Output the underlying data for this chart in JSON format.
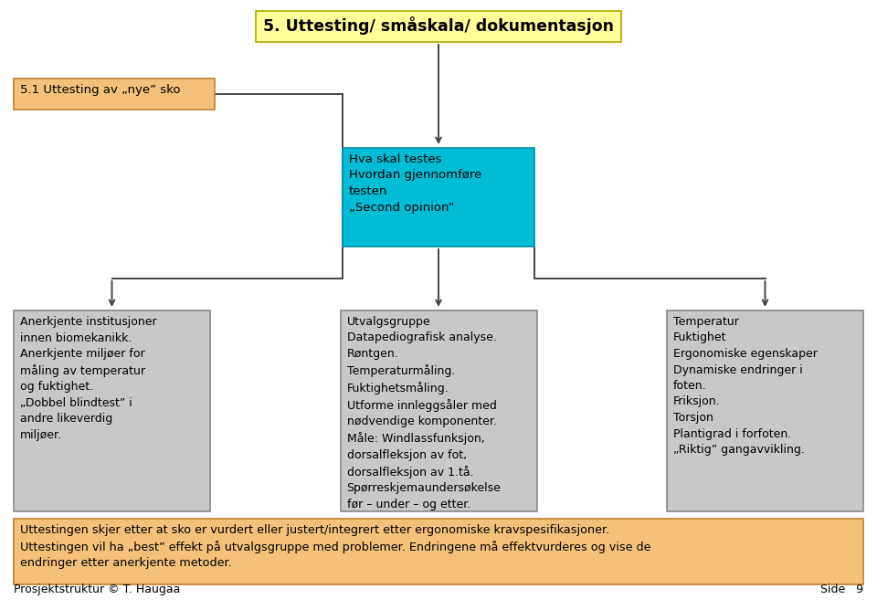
{
  "title": "5. Uttesting/ småskala/ dokumentasjon",
  "title_bg": "#ffff99",
  "title_border": "#aaa800",
  "box_51_text": "5.1 Uttesting av „nye” sko",
  "box_51_bg": "#f5c07a",
  "box_51_border": "#c08030",
  "box_center_text": "Hva skal testes\nHvordan gjennomføre\ntesten\n„Second opinion”",
  "box_center_bg": "#00bcd4",
  "box_center_border": "#0090aa",
  "box_left_text": "Anerkjente institusjoner\ninnen biomekanikk.\nAnerkjente miljøer for\nmåling av temperatur\nog fuktighet.\n„Dobbel blindtest” i\nandre likeverdig\nmiljøer.",
  "box_left_bg": "#c8c8c8",
  "box_left_border": "#888888",
  "box_mid_text": "Utvalgsgruppe\nDatapediografisk analyse.\nRøntgen.\nTemperaturmåling.\nFuktighetsmåling.\nUtforme innleggsåler med\nnødvendige komponenter.\nMåle: Windlassfunksjon,\ndorsalfleksjon av fot,\ndorsalfleksjon av 1.tå.\nSpørreskjemaundersøkelse\nfør – under – og etter.",
  "box_mid_bg": "#c8c8c8",
  "box_mid_border": "#888888",
  "box_right_text": "Temperatur\nFuktighet\nErgonomiske egenskaper\nDynamiske endringer i\nfoten.\nFriksjon.\nTorsjon\nPlantigrad i forfoten.\n„Riktig” gangavvikling.",
  "box_right_bg": "#c8c8c8",
  "box_right_border": "#888888",
  "box_bottom_text": "Uttestingen skjer etter at sko er vurdert eller justert/integrert etter ergonomiske kravspesifikasjoner.\nUttestingen vil ha „best” effekt på utvalgsgruppe med problemer. Endringene må effektvurderes og vise de\nendringer etter anerkjente metoder.",
  "box_bottom_bg": "#f5c07a",
  "box_bottom_border": "#c08030",
  "footer_left": "Prosjektstruktur © T. Haugaa",
  "footer_right": "Side   9",
  "bg_color": "#ffffff",
  "text_color": "#000000",
  "line_color": "#444444",
  "font_size": 9.0,
  "title_font_size": 12.5
}
